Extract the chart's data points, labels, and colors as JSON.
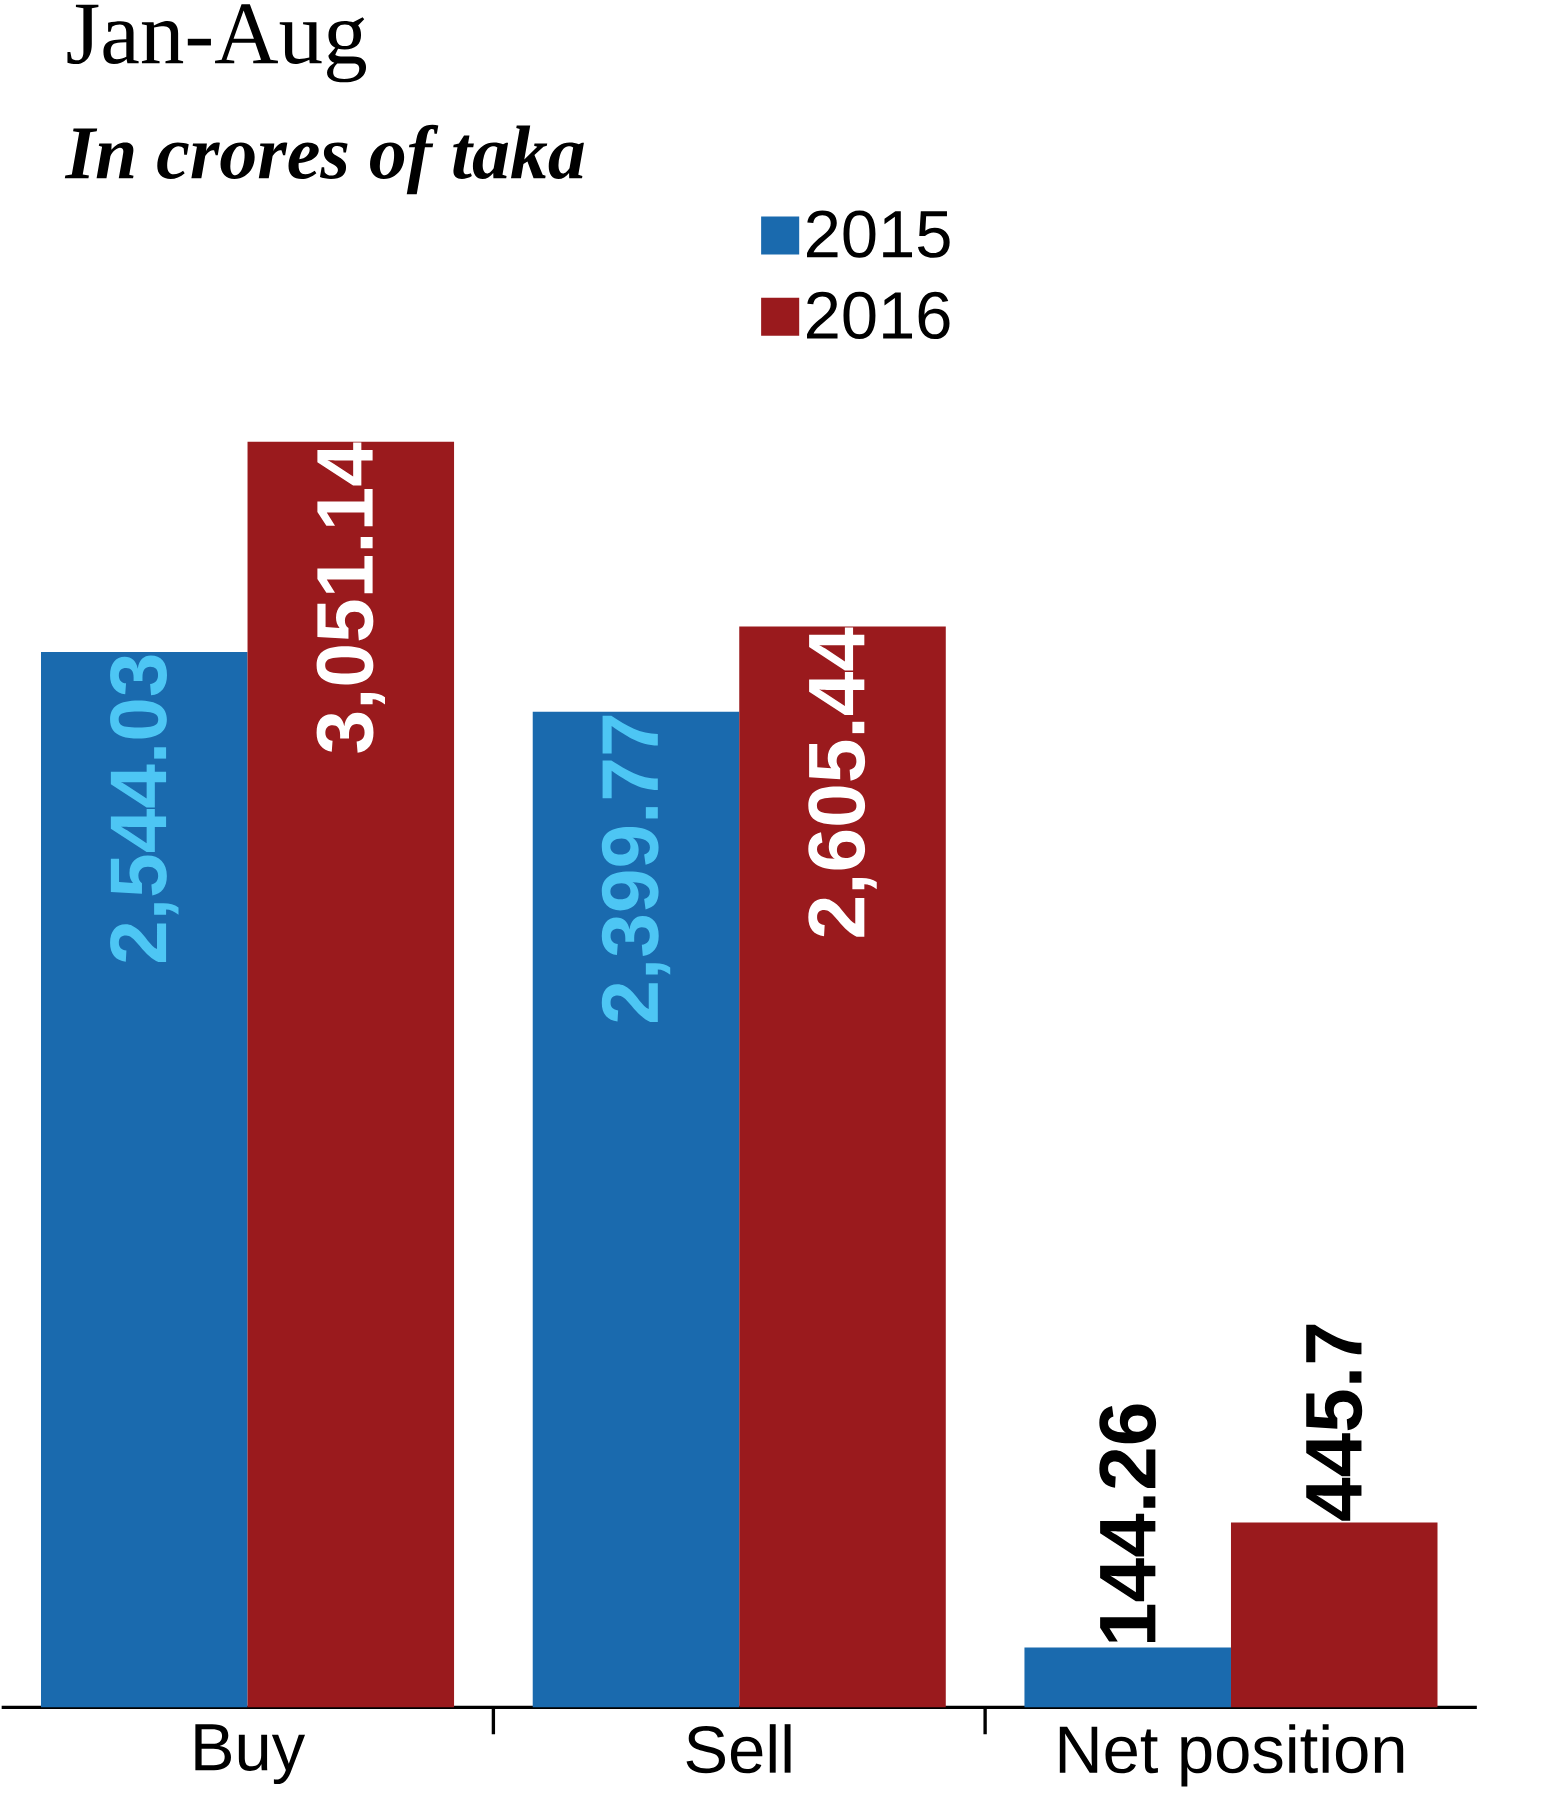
{
  "chart_data": {
    "type": "bar",
    "title": "Jan-Aug",
    "subtitle": "In crores of taka",
    "categories": [
      "Buy",
      "Sell",
      "Net position"
    ],
    "series": [
      {
        "name": "2015",
        "color": "#1a6aae",
        "values": [
          2544.03,
          2399.77,
          144.26
        ],
        "value_labels": [
          "2,544.03",
          "2,399.77",
          "144.26"
        ]
      },
      {
        "name": "2016",
        "color": "#9a1a1d",
        "values": [
          3051.14,
          2605.44,
          445.7
        ],
        "value_labels": [
          "3,051.14",
          "2,605.44",
          "445.7"
        ]
      }
    ],
    "legend": "top"
  }
}
